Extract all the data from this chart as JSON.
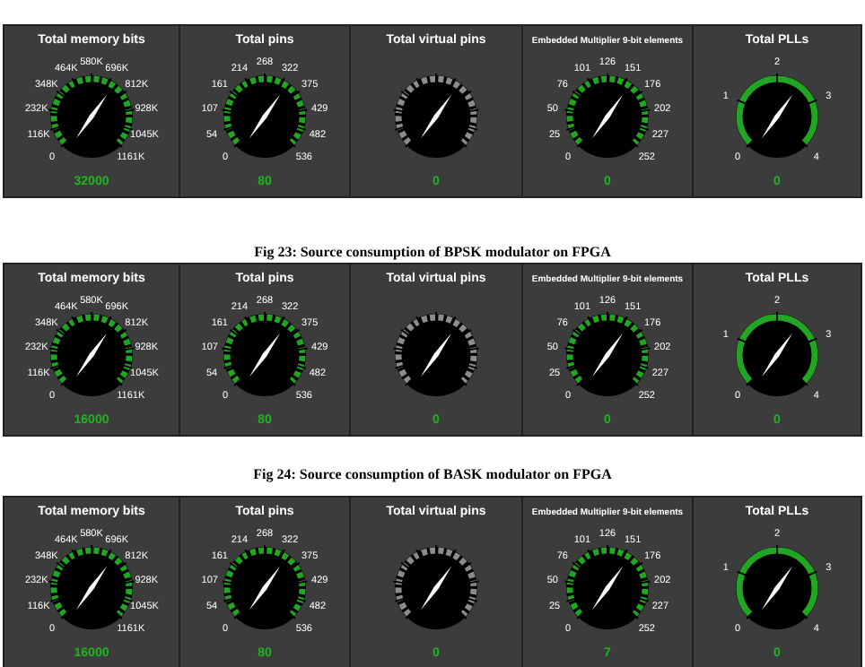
{
  "chart_data": [
    {
      "type": "other",
      "title": "Total memory bits",
      "values": [
        32000
      ],
      "data_labels": true,
      "annotations": [
        "0",
        "116K",
        "232K",
        "348K",
        "464K",
        "580K",
        "696K",
        "812K",
        "928K",
        "1045K",
        "1161K"
      ]
    },
    {
      "type": "other",
      "title": "Total pins",
      "values": [
        80
      ],
      "data_labels": true,
      "annotations": [
        "0",
        "54",
        "107",
        "161",
        "214",
        "268",
        "322",
        "375",
        "429",
        "482",
        "536"
      ]
    },
    {
      "type": "other",
      "title": "Total virtual pins",
      "values": [
        0
      ],
      "data_labels": true
    },
    {
      "type": "other",
      "title": "Embedded Multiplier 9-bit elements",
      "values": [
        0
      ],
      "data_labels": true,
      "annotations": [
        "0",
        "25",
        "50",
        "76",
        "101",
        "126",
        "151",
        "176",
        "202",
        "227",
        "252"
      ]
    },
    {
      "type": "other",
      "title": "Total PLLs",
      "values": [
        0
      ],
      "data_labels": true,
      "annotations": [
        "0",
        "1",
        "2",
        "3",
        "4"
      ]
    },
    {
      "type": "other",
      "title": "Fig 23: Source consumption of BPSK modulator on FPGA"
    },
    {
      "type": "other",
      "title": "Total memory bits",
      "values": [
        16000
      ],
      "data_labels": true,
      "annotations": [
        "0",
        "116K",
        "232K",
        "348K",
        "464K",
        "580K",
        "696K",
        "812K",
        "928K",
        "1045K",
        "1161K"
      ]
    },
    {
      "type": "other",
      "title": "Total pins",
      "values": [
        80
      ],
      "data_labels": true,
      "annotations": [
        "0",
        "54",
        "107",
        "161",
        "214",
        "268",
        "322",
        "375",
        "429",
        "482",
        "536"
      ]
    },
    {
      "type": "other",
      "title": "Total virtual pins",
      "values": [
        0
      ],
      "data_labels": true
    },
    {
      "type": "other",
      "title": "Embedded Multiplier 9-bit elements",
      "values": [
        0
      ],
      "data_labels": true,
      "annotations": [
        "0",
        "25",
        "50",
        "76",
        "101",
        "126",
        "151",
        "176",
        "202",
        "227",
        "252"
      ]
    },
    {
      "type": "other",
      "title": "Total PLLs",
      "values": [
        0
      ],
      "data_labels": true,
      "annotations": [
        "0",
        "1",
        "2",
        "3",
        "4"
      ]
    },
    {
      "type": "other",
      "title": "Fig 24: Source consumption of BASK modulator on FPGA"
    },
    {
      "type": "other",
      "title": "Total memory bits",
      "values": [
        16000
      ],
      "data_labels": true,
      "annotations": [
        "0",
        "116K",
        "232K",
        "348K",
        "464K",
        "580K",
        "696K",
        "812K",
        "928K",
        "1045K",
        "1161K"
      ]
    },
    {
      "type": "other",
      "title": "Total pins",
      "values": [
        80
      ],
      "data_labels": true,
      "annotations": [
        "0",
        "54",
        "107",
        "161",
        "214",
        "268",
        "322",
        "375",
        "429",
        "482",
        "536"
      ]
    },
    {
      "type": "other",
      "title": "Total virtual pins",
      "values": [
        0
      ],
      "data_labels": true
    },
    {
      "type": "other",
      "title": "Embedded Multiplier 9-bit elements",
      "values": [
        7
      ],
      "data_labels": true,
      "annotations": [
        "0",
        "25",
        "50",
        "76",
        "101",
        "126",
        "151",
        "176",
        "202",
        "227",
        "252"
      ]
    },
    {
      "type": "other",
      "title": "Total PLLs",
      "values": [
        0
      ],
      "data_labels": true,
      "annotations": [
        "0",
        "1",
        "2",
        "3",
        "4"
      ]
    }
  ]
}
